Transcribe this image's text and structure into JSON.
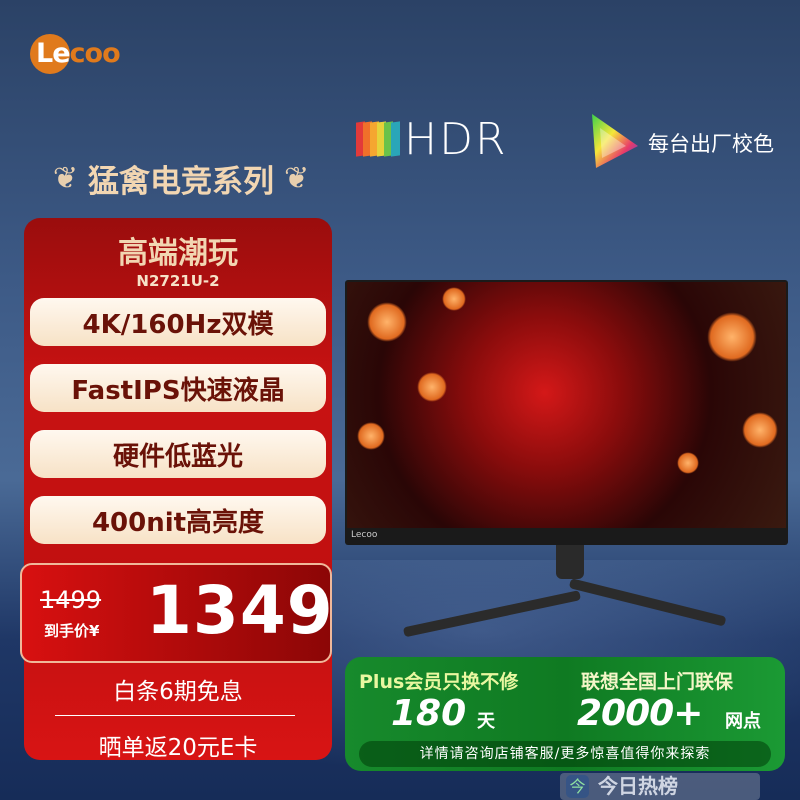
{
  "brand": {
    "logo_text": "Lecoo",
    "logo_color": "#e07a1c"
  },
  "badges": {
    "hdr": "HDR",
    "calibration": "每台出厂校色"
  },
  "series_title": "猛禽电竞系列",
  "product": {
    "headline": "高端潮玩",
    "model": "N2721U-2"
  },
  "features": [
    "4K/160Hz双模",
    "FastIPS快速液晶",
    "硬件低蓝光",
    "400nit高亮度"
  ],
  "price": {
    "original": "1499",
    "label": "到手价¥",
    "current": "1349"
  },
  "promos": [
    "白条6期免息",
    "晒单返20元E卡"
  ],
  "service": {
    "left_title": "Plus会员只换不修",
    "left_number": "180",
    "left_unit": "天",
    "right_title": "联想全国上门联保",
    "right_number": "2000+",
    "right_unit": "网点",
    "note": "详情请咨询店铺客服/更多惊喜值得你来探索"
  },
  "monitor_logo": "Lecoo",
  "watermark": {
    "icon": "今",
    "text": "今日热榜"
  },
  "colors": {
    "red_panel": "#c81212",
    "green_panel": "#178a2c",
    "cream": "#f2d6b2",
    "background": "#2b4266"
  }
}
